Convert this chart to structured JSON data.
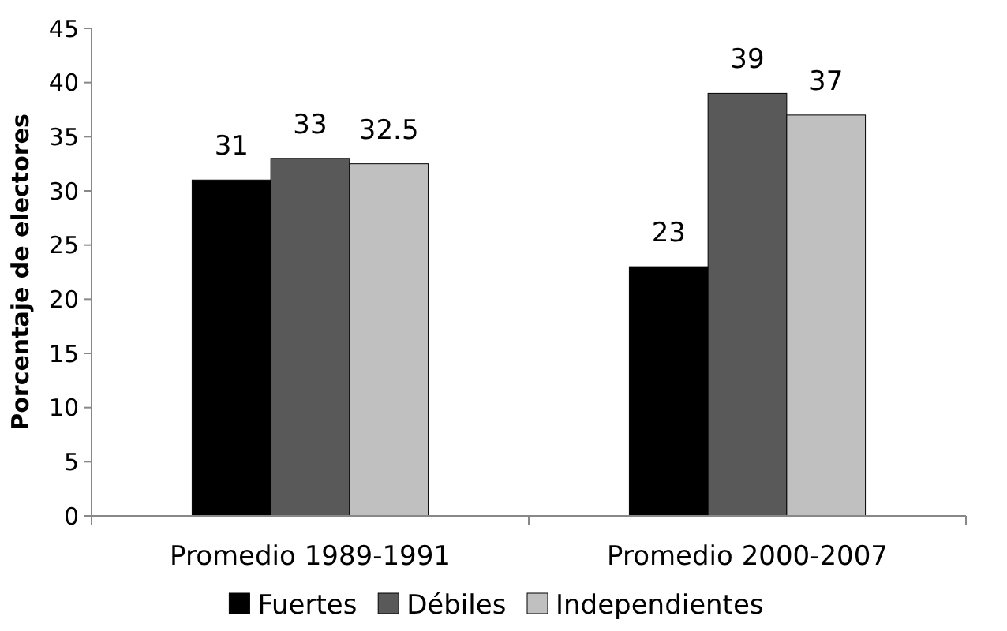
{
  "chart_data": {
    "type": "bar",
    "ylabel": "Porcentaje de electores",
    "categories": [
      "Promedio 1989-1991",
      "Promedio 2000-2007"
    ],
    "series": [
      {
        "name": "Fuertes",
        "color": "#000000",
        "values": [
          31,
          23
        ]
      },
      {
        "name": "Débiles",
        "color": "#595959",
        "values": [
          33,
          39
        ]
      },
      {
        "name": "Independientes",
        "color": "#c0c0c0",
        "values": [
          32.5,
          37
        ]
      }
    ],
    "ylim": [
      0,
      45
    ],
    "yticks": [
      0,
      5,
      10,
      15,
      20,
      25,
      30,
      35,
      40,
      45
    ],
    "data_labels": true,
    "legend": "bottom",
    "grid": false
  }
}
